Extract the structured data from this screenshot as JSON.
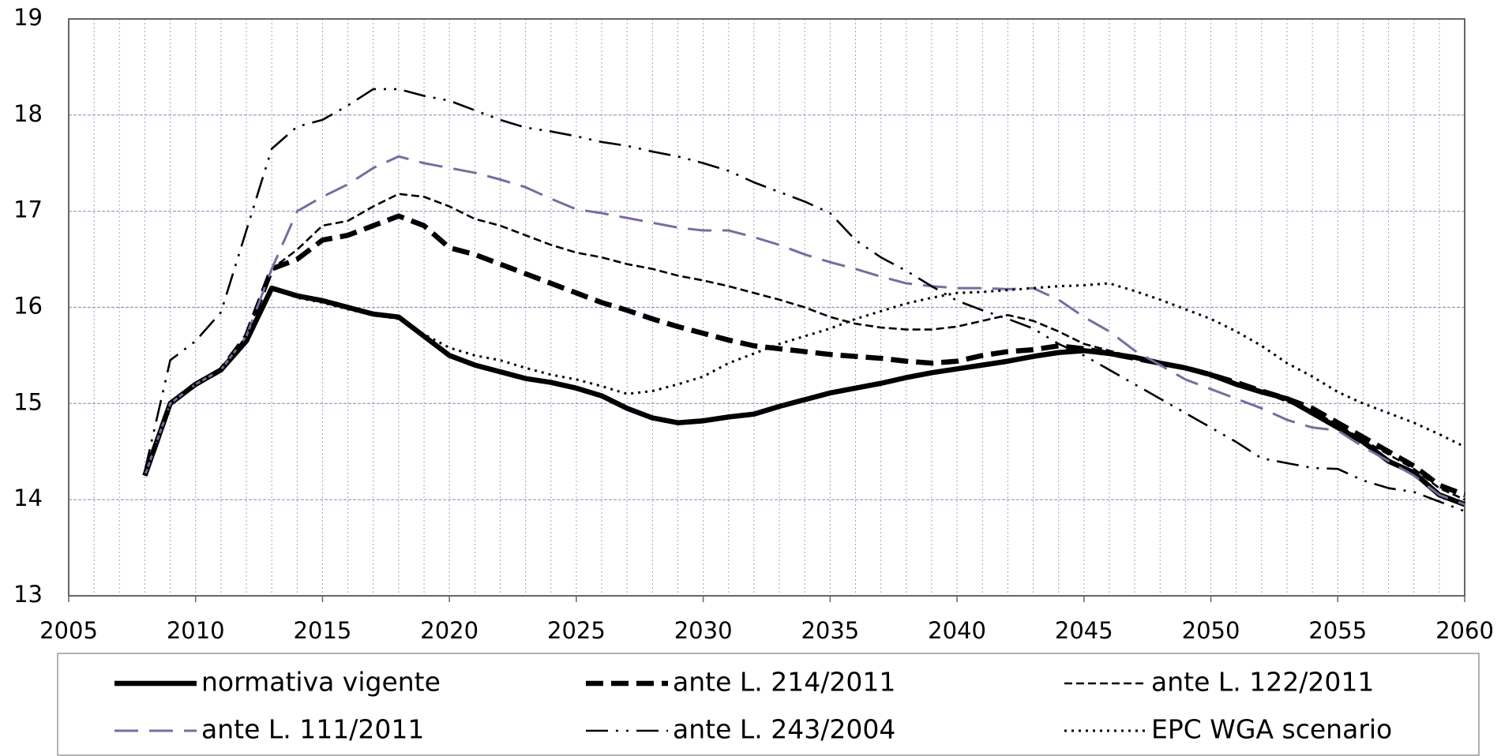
{
  "chart_data": {
    "type": "line",
    "x": [
      2008,
      2009,
      2010,
      2011,
      2012,
      2013,
      2014,
      2015,
      2016,
      2017,
      2018,
      2019,
      2020,
      2021,
      2022,
      2023,
      2024,
      2025,
      2026,
      2027,
      2028,
      2029,
      2030,
      2031,
      2032,
      2033,
      2034,
      2035,
      2036,
      2037,
      2038,
      2039,
      2040,
      2041,
      2042,
      2043,
      2044,
      2045,
      2046,
      2047,
      2048,
      2049,
      2050,
      2051,
      2052,
      2053,
      2054,
      2055,
      2056,
      2057,
      2058,
      2059,
      2060
    ],
    "series": [
      {
        "name": "normativa vigente",
        "color": "#000000",
        "values": [
          14.25,
          15.0,
          15.2,
          15.35,
          15.65,
          16.2,
          16.12,
          16.07,
          16.0,
          15.93,
          15.9,
          15.7,
          15.5,
          15.4,
          15.33,
          15.26,
          15.22,
          15.16,
          15.08,
          14.95,
          14.85,
          14.8,
          14.82,
          14.86,
          14.89,
          14.97,
          15.04,
          15.11,
          15.16,
          15.21,
          15.27,
          15.32,
          15.36,
          15.4,
          15.44,
          15.49,
          15.53,
          15.55,
          15.52,
          15.48,
          15.42,
          15.37,
          15.3,
          15.2,
          15.12,
          15.05,
          14.9,
          14.75,
          14.6,
          14.4,
          14.28,
          14.05,
          13.95
        ]
      },
      {
        "name": "ante L. 214/2011",
        "color": "#000000",
        "values": [
          14.25,
          15.0,
          15.2,
          15.35,
          15.7,
          16.4,
          16.5,
          16.7,
          16.75,
          16.85,
          16.95,
          16.85,
          16.62,
          16.55,
          16.45,
          16.35,
          16.25,
          16.15,
          16.05,
          15.97,
          15.88,
          15.8,
          15.73,
          15.66,
          15.6,
          15.57,
          15.54,
          15.51,
          15.49,
          15.47,
          15.44,
          15.42,
          15.44,
          15.5,
          15.54,
          15.56,
          15.6,
          15.57,
          15.52,
          15.47,
          15.42,
          15.37,
          15.3,
          15.22,
          15.13,
          15.05,
          14.95,
          14.8,
          14.65,
          14.5,
          14.35,
          14.15,
          14.05
        ]
      },
      {
        "name": "ante L. 122/2011",
        "color": "#000000",
        "values": [
          14.25,
          15.0,
          15.2,
          15.35,
          15.7,
          16.4,
          16.6,
          16.85,
          16.9,
          17.05,
          17.18,
          17.15,
          17.05,
          16.92,
          16.85,
          16.75,
          16.65,
          16.57,
          16.52,
          16.45,
          16.4,
          16.33,
          16.28,
          16.22,
          16.15,
          16.08,
          16.0,
          15.9,
          15.83,
          15.79,
          15.77,
          15.77,
          15.8,
          15.86,
          15.92,
          15.86,
          15.75,
          15.62,
          15.55,
          15.48,
          15.42,
          15.36,
          15.28,
          15.2,
          15.12,
          15.02,
          14.92,
          14.78,
          14.62,
          14.47,
          14.32,
          14.12,
          14.0
        ]
      },
      {
        "name": "ante L. 111/2011",
        "color": "#7b6a9e",
        "values": [
          14.25,
          15.0,
          15.2,
          15.35,
          15.7,
          16.4,
          17.0,
          17.15,
          17.28,
          17.45,
          17.57,
          17.5,
          17.45,
          17.4,
          17.33,
          17.25,
          17.13,
          17.02,
          16.98,
          16.93,
          16.88,
          16.83,
          16.8,
          16.8,
          16.73,
          16.65,
          16.55,
          16.47,
          16.4,
          16.32,
          16.25,
          16.22,
          16.2,
          16.2,
          16.19,
          16.2,
          16.08,
          15.9,
          15.75,
          15.55,
          15.4,
          15.25,
          15.15,
          15.05,
          14.95,
          14.83,
          14.75,
          14.72,
          14.55,
          14.4,
          14.25,
          14.05,
          13.95
        ]
      },
      {
        "name": "ante L. 243/2004",
        "color": "#000000",
        "values": [
          14.3,
          15.45,
          15.65,
          15.95,
          16.8,
          17.65,
          17.88,
          17.95,
          18.1,
          18.27,
          18.27,
          18.2,
          18.15,
          18.05,
          17.95,
          17.87,
          17.83,
          17.78,
          17.72,
          17.68,
          17.62,
          17.57,
          17.5,
          17.42,
          17.3,
          17.2,
          17.1,
          16.98,
          16.7,
          16.52,
          16.38,
          16.22,
          16.07,
          15.97,
          15.88,
          15.78,
          15.62,
          15.5,
          15.35,
          15.2,
          15.05,
          14.9,
          14.75,
          14.6,
          14.43,
          14.38,
          14.33,
          14.32,
          14.2,
          14.12,
          14.08,
          13.98,
          13.88
        ]
      },
      {
        "name": "EPC WGA scenario",
        "color": "#000000",
        "values": [
          14.25,
          15.0,
          15.2,
          15.35,
          15.7,
          16.2,
          16.1,
          16.05,
          15.98,
          15.92,
          15.88,
          15.72,
          15.58,
          15.5,
          15.45,
          15.37,
          15.3,
          15.25,
          15.18,
          15.1,
          15.13,
          15.2,
          15.28,
          15.42,
          15.52,
          15.62,
          15.7,
          15.78,
          15.88,
          15.96,
          16.04,
          16.1,
          16.15,
          16.16,
          16.18,
          16.2,
          16.22,
          16.23,
          16.25,
          16.17,
          16.08,
          15.98,
          15.88,
          15.75,
          15.6,
          15.42,
          15.28,
          15.12,
          15.0,
          14.9,
          14.8,
          14.68,
          14.55
        ]
      }
    ],
    "xlim": [
      2005,
      2060
    ],
    "xticks": [
      2005,
      2010,
      2015,
      2020,
      2025,
      2030,
      2035,
      2040,
      2045,
      2050,
      2055,
      2060
    ],
    "xminorticks": [
      2006,
      2007,
      2008,
      2009,
      2011,
      2012,
      2013,
      2014,
      2016,
      2017,
      2018,
      2019,
      2021,
      2022,
      2023,
      2024,
      2026,
      2027,
      2028,
      2029,
      2031,
      2032,
      2033,
      2034,
      2036,
      2037,
      2038,
      2039,
      2041,
      2042,
      2043,
      2044,
      2046,
      2047,
      2048,
      2049,
      2051,
      2052,
      2053,
      2054,
      2056,
      2057,
      2058,
      2059
    ],
    "ylim": [
      13,
      19
    ],
    "yticks": [
      13,
      14,
      15,
      16,
      17,
      18,
      19
    ],
    "grid": true,
    "legend": "bottom"
  }
}
